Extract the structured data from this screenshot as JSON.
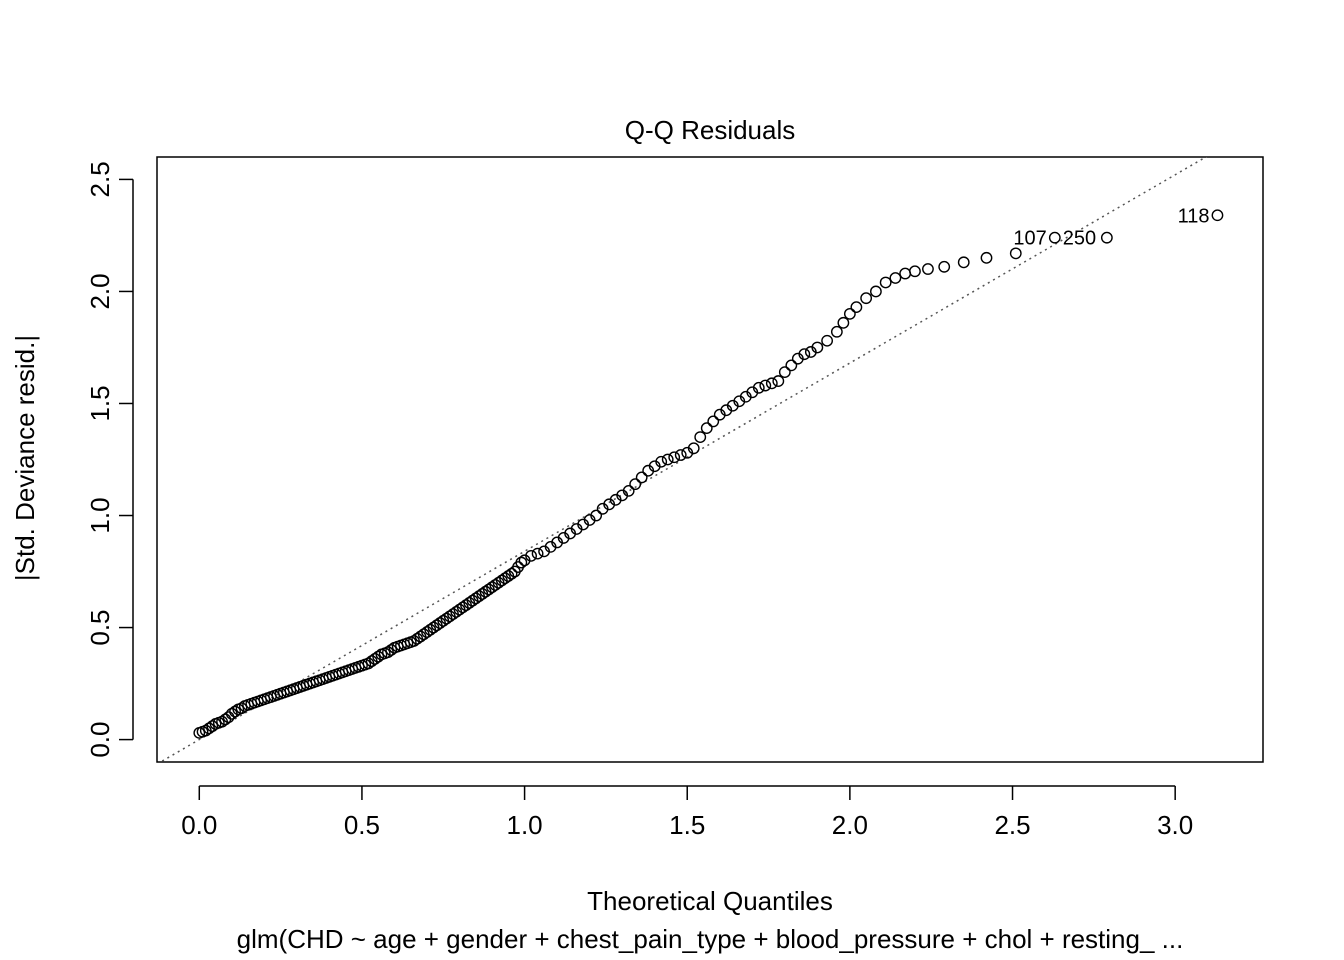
{
  "chart_data": {
    "type": "scatter",
    "title": "Q-Q Residuals",
    "xlabel": "Theoretical Quantiles",
    "ylabel": "|Std. Deviance resid.|",
    "subtitle": "glm(CHD ~ age + gender + chest_pain_type + blood_pressure + chol + resting_ ...",
    "xlim": [
      -0.13,
      3.27
    ],
    "ylim": [
      -0.1,
      2.6
    ],
    "x_ticks": [
      "0.0",
      "0.5",
      "1.0",
      "1.5",
      "2.0",
      "2.5",
      "3.0"
    ],
    "y_ticks": [
      "0.0",
      "0.5",
      "1.0",
      "1.5",
      "2.0",
      "2.5"
    ],
    "x_tick_values": [
      0,
      0.5,
      1.0,
      1.5,
      2.0,
      2.5,
      3.0
    ],
    "y_tick_values": [
      0,
      0.5,
      1.0,
      1.5,
      2.0,
      2.5
    ],
    "reference_line": {
      "style": "dotted",
      "through": [
        [
          0,
          0
        ],
        [
          3.13,
          2.63
        ]
      ]
    },
    "points": [
      [
        0.0,
        0.03
      ],
      [
        0.01,
        0.035
      ],
      [
        0.02,
        0.04
      ],
      [
        0.03,
        0.05
      ],
      [
        0.04,
        0.06
      ],
      [
        0.05,
        0.07
      ],
      [
        0.06,
        0.075
      ],
      [
        0.07,
        0.08
      ],
      [
        0.08,
        0.09
      ],
      [
        0.09,
        0.1
      ],
      [
        0.1,
        0.115
      ],
      [
        0.11,
        0.125
      ],
      [
        0.12,
        0.135
      ],
      [
        0.13,
        0.14
      ],
      [
        0.14,
        0.15
      ],
      [
        0.15,
        0.155
      ],
      [
        0.16,
        0.16
      ],
      [
        0.17,
        0.165
      ],
      [
        0.18,
        0.17
      ],
      [
        0.19,
        0.175
      ],
      [
        0.2,
        0.18
      ],
      [
        0.21,
        0.185
      ],
      [
        0.22,
        0.19
      ],
      [
        0.23,
        0.195
      ],
      [
        0.24,
        0.2
      ],
      [
        0.25,
        0.205
      ],
      [
        0.26,
        0.21
      ],
      [
        0.27,
        0.215
      ],
      [
        0.28,
        0.22
      ],
      [
        0.29,
        0.225
      ],
      [
        0.3,
        0.23
      ],
      [
        0.31,
        0.235
      ],
      [
        0.32,
        0.24
      ],
      [
        0.33,
        0.245
      ],
      [
        0.34,
        0.25
      ],
      [
        0.35,
        0.255
      ],
      [
        0.36,
        0.26
      ],
      [
        0.37,
        0.265
      ],
      [
        0.38,
        0.27
      ],
      [
        0.39,
        0.275
      ],
      [
        0.4,
        0.28
      ],
      [
        0.41,
        0.285
      ],
      [
        0.42,
        0.29
      ],
      [
        0.43,
        0.295
      ],
      [
        0.44,
        0.3
      ],
      [
        0.45,
        0.305
      ],
      [
        0.46,
        0.31
      ],
      [
        0.47,
        0.315
      ],
      [
        0.48,
        0.32
      ],
      [
        0.49,
        0.325
      ],
      [
        0.5,
        0.33
      ],
      [
        0.51,
        0.335
      ],
      [
        0.52,
        0.34
      ],
      [
        0.53,
        0.35
      ],
      [
        0.54,
        0.36
      ],
      [
        0.55,
        0.37
      ],
      [
        0.56,
        0.38
      ],
      [
        0.57,
        0.385
      ],
      [
        0.58,
        0.39
      ],
      [
        0.59,
        0.4
      ],
      [
        0.6,
        0.41
      ],
      [
        0.61,
        0.415
      ],
      [
        0.62,
        0.42
      ],
      [
        0.63,
        0.425
      ],
      [
        0.64,
        0.43
      ],
      [
        0.65,
        0.435
      ],
      [
        0.66,
        0.44
      ],
      [
        0.67,
        0.45
      ],
      [
        0.68,
        0.46
      ],
      [
        0.69,
        0.47
      ],
      [
        0.7,
        0.48
      ],
      [
        0.71,
        0.49
      ],
      [
        0.72,
        0.5
      ],
      [
        0.73,
        0.51
      ],
      [
        0.74,
        0.52
      ],
      [
        0.75,
        0.53
      ],
      [
        0.76,
        0.54
      ],
      [
        0.77,
        0.55
      ],
      [
        0.78,
        0.56
      ],
      [
        0.79,
        0.57
      ],
      [
        0.8,
        0.58
      ],
      [
        0.81,
        0.59
      ],
      [
        0.82,
        0.6
      ],
      [
        0.83,
        0.61
      ],
      [
        0.84,
        0.62
      ],
      [
        0.85,
        0.63
      ],
      [
        0.86,
        0.64
      ],
      [
        0.87,
        0.65
      ],
      [
        0.88,
        0.66
      ],
      [
        0.89,
        0.67
      ],
      [
        0.9,
        0.68
      ],
      [
        0.91,
        0.69
      ],
      [
        0.92,
        0.7
      ],
      [
        0.93,
        0.71
      ],
      [
        0.94,
        0.72
      ],
      [
        0.95,
        0.73
      ],
      [
        0.96,
        0.74
      ],
      [
        0.97,
        0.75
      ],
      [
        0.98,
        0.77
      ],
      [
        0.99,
        0.79
      ],
      [
        1.0,
        0.8
      ],
      [
        1.02,
        0.82
      ],
      [
        1.04,
        0.83
      ],
      [
        1.06,
        0.84
      ],
      [
        1.08,
        0.86
      ],
      [
        1.1,
        0.88
      ],
      [
        1.12,
        0.9
      ],
      [
        1.14,
        0.92
      ],
      [
        1.16,
        0.94
      ],
      [
        1.18,
        0.96
      ],
      [
        1.2,
        0.98
      ],
      [
        1.22,
        1.0
      ],
      [
        1.24,
        1.03
      ],
      [
        1.26,
        1.05
      ],
      [
        1.28,
        1.07
      ],
      [
        1.3,
        1.09
      ],
      [
        1.32,
        1.11
      ],
      [
        1.34,
        1.14
      ],
      [
        1.36,
        1.17
      ],
      [
        1.38,
        1.2
      ],
      [
        1.4,
        1.22
      ],
      [
        1.42,
        1.24
      ],
      [
        1.44,
        1.25
      ],
      [
        1.46,
        1.26
      ],
      [
        1.48,
        1.27
      ],
      [
        1.5,
        1.28
      ],
      [
        1.52,
        1.3
      ],
      [
        1.54,
        1.35
      ],
      [
        1.56,
        1.39
      ],
      [
        1.58,
        1.42
      ],
      [
        1.6,
        1.45
      ],
      [
        1.62,
        1.47
      ],
      [
        1.64,
        1.49
      ],
      [
        1.66,
        1.51
      ],
      [
        1.68,
        1.53
      ],
      [
        1.7,
        1.55
      ],
      [
        1.72,
        1.57
      ],
      [
        1.74,
        1.58
      ],
      [
        1.76,
        1.59
      ],
      [
        1.78,
        1.6
      ],
      [
        1.8,
        1.64
      ],
      [
        1.82,
        1.67
      ],
      [
        1.84,
        1.7
      ],
      [
        1.86,
        1.72
      ],
      [
        1.88,
        1.73
      ],
      [
        1.9,
        1.75
      ],
      [
        1.93,
        1.78
      ],
      [
        1.96,
        1.82
      ],
      [
        1.98,
        1.86
      ],
      [
        2.0,
        1.9
      ],
      [
        2.02,
        1.93
      ],
      [
        2.05,
        1.97
      ],
      [
        2.08,
        2.0
      ],
      [
        2.11,
        2.04
      ],
      [
        2.14,
        2.06
      ],
      [
        2.17,
        2.08
      ],
      [
        2.2,
        2.09
      ],
      [
        2.24,
        2.1
      ],
      [
        2.29,
        2.11
      ],
      [
        2.35,
        2.13
      ],
      [
        2.42,
        2.15
      ],
      [
        2.51,
        2.17
      ],
      [
        2.63,
        2.24
      ],
      [
        2.79,
        2.24
      ],
      [
        3.13,
        2.34
      ]
    ],
    "labeled_points": [
      {
        "label": "107",
        "x": 2.63,
        "y": 2.24,
        "anchor": "end"
      },
      {
        "label": "250",
        "x": 2.63,
        "y": 2.24,
        "anchor": "start"
      },
      {
        "label": "118",
        "x": 3.13,
        "y": 2.34,
        "anchor": "end"
      }
    ]
  }
}
